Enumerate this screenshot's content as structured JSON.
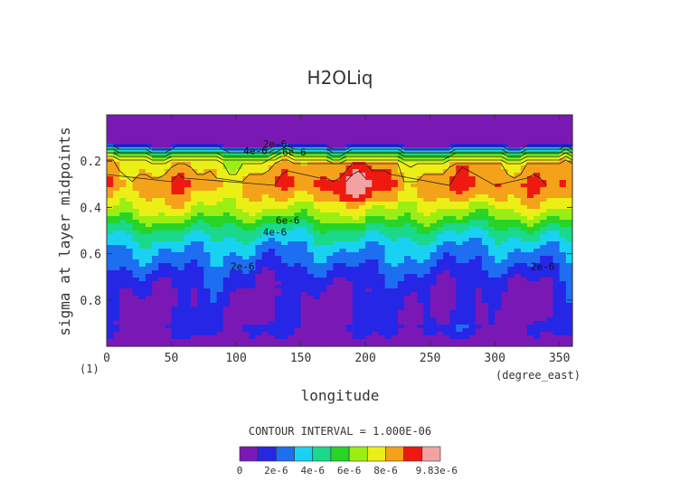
{
  "chart_data": {
    "type": "heatmap",
    "title": "H2OLiq",
    "xlabel": "longitude",
    "ylabel": "sigma at layer midpoints",
    "x_unit_label": "(degree_east)",
    "y_unit_label": "(1)",
    "xlim": [
      0,
      360
    ],
    "ylim": [
      1.0,
      0.0
    ],
    "x_ticks": [
      0,
      50,
      100,
      150,
      200,
      250,
      300,
      350
    ],
    "y_ticks": [
      0.2,
      0.4,
      0.6,
      0.8
    ],
    "y_tick_labels": [
      "0.2",
      "0.4",
      "0.6",
      "0.8"
    ],
    "contour_interval_text": "CONTOUR INTERVAL = 1.000E-06",
    "contour_labels": [
      {
        "text": "2e-6",
        "lon": 130,
        "sigma": 0.125
      },
      {
        "text": "4e-6",
        "lon": 115,
        "sigma": 0.155
      },
      {
        "text": "6e-6",
        "lon": 145,
        "sigma": 0.16
      },
      {
        "text": "6e-6",
        "lon": 140,
        "sigma": 0.455
      },
      {
        "text": "4e-6",
        "lon": 130,
        "sigma": 0.505
      },
      {
        "text": "2e-6",
        "lon": 105,
        "sigma": 0.655
      },
      {
        "text": "2e-6",
        "lon": 337,
        "sigma": 0.655
      }
    ],
    "levels": [
      0,
      1e-06,
      2e-06,
      3e-06,
      4e-06,
      5e-06,
      6e-06,
      7e-06,
      8e-06,
      9e-06,
      9.83e-06
    ],
    "colormap": [
      "#7a18b6",
      "#2626e6",
      "#1d6ef0",
      "#19d2f2",
      "#1ad98a",
      "#27d427",
      "#9bee14",
      "#ecef16",
      "#f4a21a",
      "#ee1a10",
      "#f2a2a2"
    ],
    "colorbar_tick_labels": [
      "0",
      "2e-6",
      "4e-6",
      "6e-6",
      "8e-6",
      "9.83e-6"
    ],
    "sigma_profile": [
      {
        "sigma": 0.0,
        "value": 0
      },
      {
        "sigma": 0.125,
        "value": 2e-07
      },
      {
        "sigma": 0.14,
        "value": 2e-06
      },
      {
        "sigma": 0.16,
        "value": 5e-06
      },
      {
        "sigma": 0.2,
        "value": 7.5e-06
      },
      {
        "sigma": 0.3,
        "value": 8.6e-06
      },
      {
        "sigma": 0.4,
        "value": 7.2e-06
      },
      {
        "sigma": 0.45,
        "value": 6e-06
      },
      {
        "sigma": 0.5,
        "value": 4.5e-06
      },
      {
        "sigma": 0.58,
        "value": 3e-06
      },
      {
        "sigma": 0.65,
        "value": 2.2e-06
      },
      {
        "sigma": 0.72,
        "value": 1.3e-06
      },
      {
        "sigma": 0.82,
        "value": 1e-06
      },
      {
        "sigma": 0.92,
        "value": 1.2e-06
      },
      {
        "sigma": 0.96,
        "value": 6e-07
      },
      {
        "sigma": 1.0,
        "value": 3e-07
      }
    ]
  }
}
